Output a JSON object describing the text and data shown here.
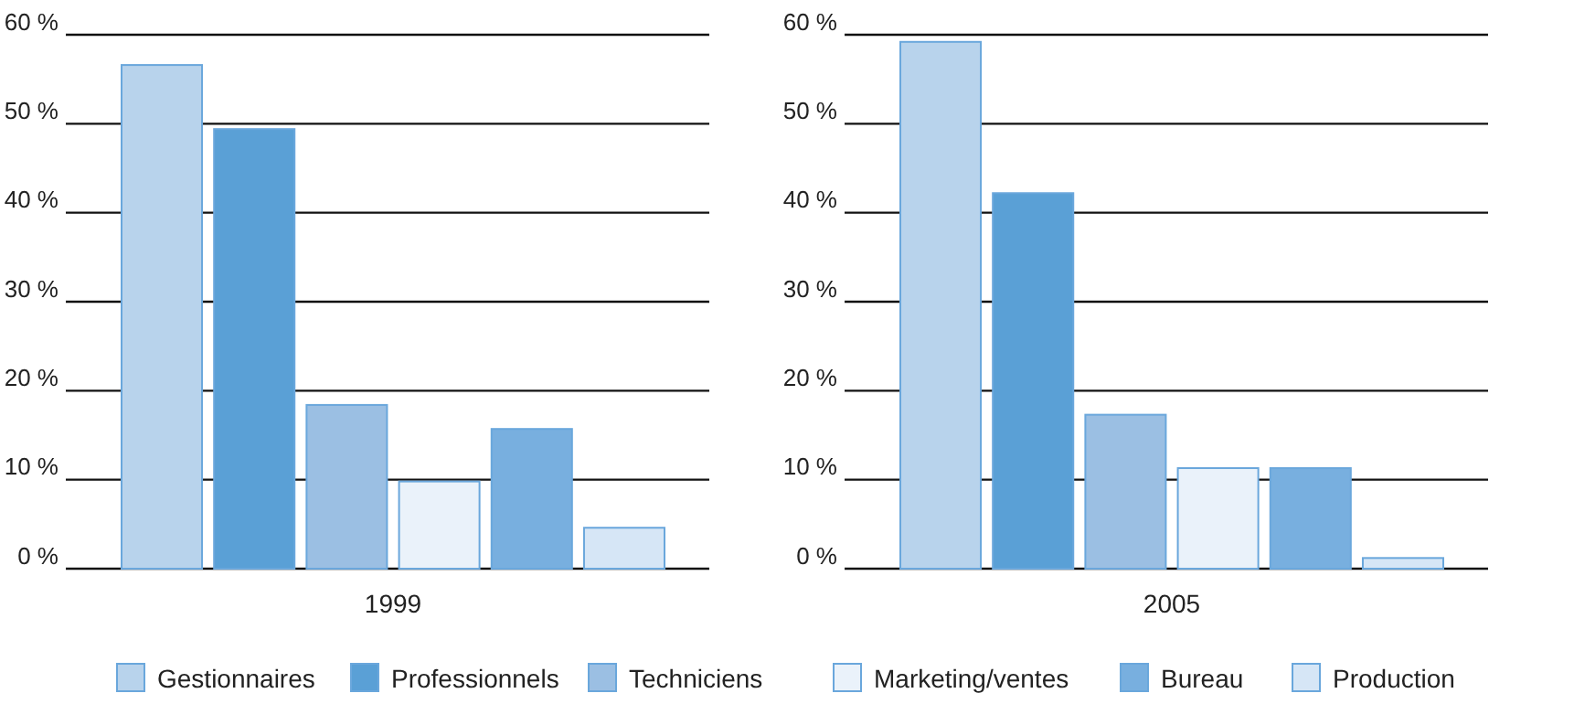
{
  "chart_data": [
    {
      "type": "bar",
      "categories": [
        "1999"
      ],
      "series": [
        {
          "name": "Gestionnaires",
          "color": "#b8d3ec",
          "values": [
            56.6
          ]
        },
        {
          "name": "Professionnels",
          "color": "#5aa0d6",
          "values": [
            49.4
          ]
        },
        {
          "name": "Techniciens",
          "color": "#9bbfe3",
          "values": [
            18.4
          ]
        },
        {
          "name": "Marketing/ventes",
          "color": "#eaf2fa",
          "values": [
            9.8
          ]
        },
        {
          "name": "Bureau",
          "color": "#78afdf",
          "values": [
            15.7
          ]
        },
        {
          "name": "Production",
          "color": "#d6e6f6",
          "values": [
            4.6
          ]
        }
      ],
      "ylim": [
        0,
        60
      ],
      "yticks": [
        {
          "value": 0,
          "label": "0 %"
        },
        {
          "value": 10,
          "label": "10 %"
        },
        {
          "value": 20,
          "label": "20 %"
        },
        {
          "value": 30,
          "label": "30 %"
        },
        {
          "value": 40,
          "label": "40 %"
        },
        {
          "value": 50,
          "label": "50 %"
        },
        {
          "value": 60,
          "label": "60 %"
        }
      ],
      "grid": "y",
      "legend": "bottom"
    },
    {
      "type": "bar",
      "categories": [
        "2005"
      ],
      "series": [
        {
          "color": "#b8d3ec",
          "values": [
            59.2
          ]
        },
        {
          "color": "#5aa0d6",
          "values": [
            42.2
          ]
        },
        {
          "color": "#9bbfe3",
          "values": [
            17.3
          ]
        },
        {
          "color": "#eaf2fa",
          "values": [
            11.3
          ]
        },
        {
          "color": "#78afdf",
          "values": [
            11.3
          ]
        },
        {
          "color": "#d6e6f6",
          "values": [
            1.2
          ]
        }
      ],
      "ylim": [
        0,
        60
      ],
      "yticks": [
        {
          "value": 0,
          "label": "0 %"
        },
        {
          "value": 10,
          "label": "10 %"
        },
        {
          "value": 20,
          "label": "20 %"
        },
        {
          "value": 30,
          "label": "30 %"
        },
        {
          "value": 40,
          "label": "40 %"
        },
        {
          "value": 50,
          "label": "50 %"
        },
        {
          "value": 60,
          "label": "60 %"
        }
      ],
      "grid": "y"
    }
  ]
}
